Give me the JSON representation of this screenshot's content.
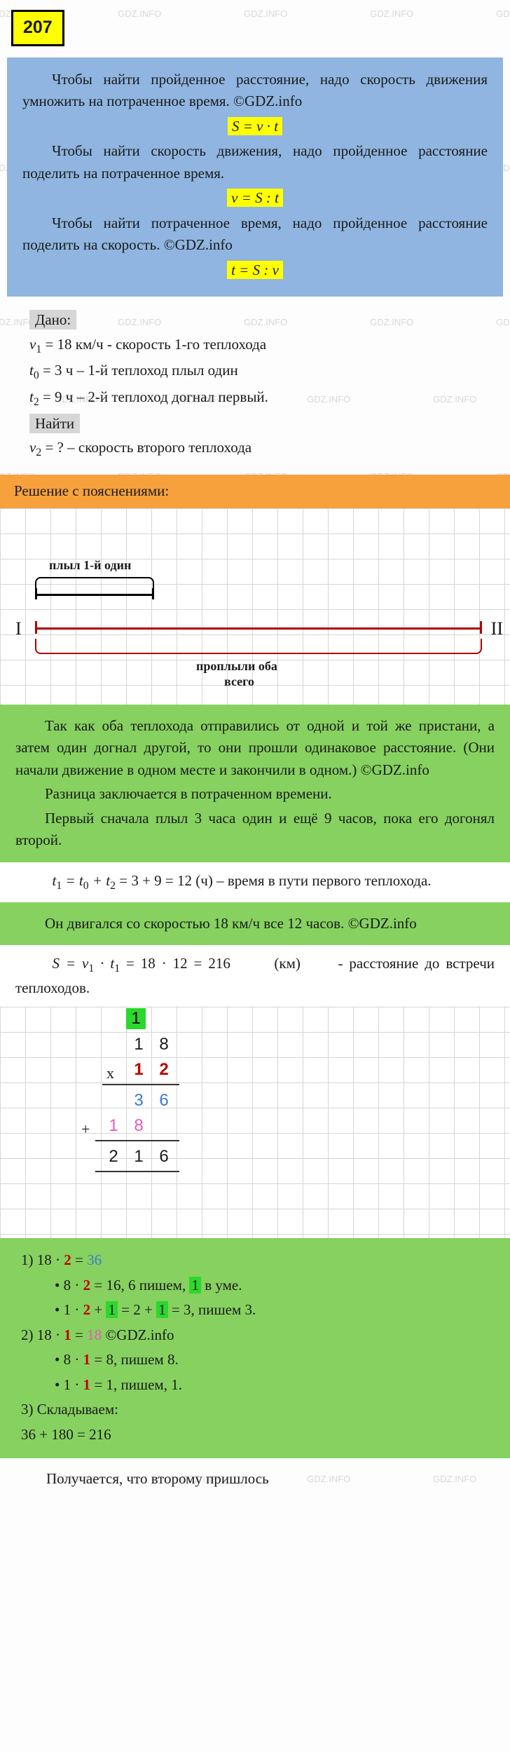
{
  "page_number": "207",
  "watermark_text": "GDZ.INFO",
  "blue_box": {
    "p1": "Чтобы найти пройденное расстояние, надо скорость движения умножить на потраченное время. ©GDZ.info",
    "f1": "S = v · t",
    "p2": "Чтобы найти скорость движения, надо пройденное расстояние поделить на потраченное время.",
    "f2": "v = S : t",
    "p3": "Чтобы найти потраченное время, надо пройденное расстояние поделить на скорость. ©GDZ.info",
    "f3": "t = S : v"
  },
  "given": {
    "label": "Дано:",
    "l1_pre": "v",
    "l1_sub": "1",
    "l1_post": " = 18 км/ч  - скорость 1-го теплохода",
    "l2_pre": "t",
    "l2_sub": "0",
    "l2_post": " = 3 ч – 1-й теплоход плыл один",
    "l3_pre": "t",
    "l3_sub": "2",
    "l3_post": " = 9 ч – 2-й теплоход догнал первый.",
    "find_label": "Найти",
    "l4_pre": "v",
    "l4_sub": "2",
    "l4_post": " = ? – скорость второго теплохода"
  },
  "orange_header": "Решение с пояснениями:",
  "diagram": {
    "label_top": "плыл 1-й один",
    "label_bottom_1": "проплыли оба",
    "label_bottom_2": "всего",
    "left": "I",
    "right": "II"
  },
  "expl1": {
    "p1": "Так как оба теплохода отправились от одной и той же пристани, а затем один догнал другой, то они прошли одинаковое расстояние. (Они начали движение в одном месте и закончили в одном.) ©GDZ.info",
    "p2": "Разница заключается в потраченном времени.",
    "p3": "Первый сначала плыл 3 часа один и ещё 9 часов, пока его догонял второй."
  },
  "step_t1": {
    "eq_pre": "t",
    "eq_s1": "1",
    "eq_mid1": " = t",
    "eq_s0": "0",
    "eq_mid2": " + t",
    "eq_s2": "2",
    "eq_post": " = 3 + 9 = 12  (ч) – время в пути первого теплохода."
  },
  "expl2": "Он двигался со скоростью 18 км/ч все 12 часов.  ©GDZ.info",
  "step_s": {
    "eq_pre": "S = v",
    "eq_s1": "1",
    "eq_mid": " · t",
    "eq_s2": "1",
    "eq_post": " = 18 · 12 = 216",
    "unit": "(км)",
    "tail": "- расстояние до встречи теплоходов."
  },
  "calc_grid": {
    "carry1": "1",
    "r1c1": "1",
    "r1c2": "8",
    "xsym": "х",
    "r2c1": "1",
    "r2c2": "2",
    "p1c1": "3",
    "p1c2": "6",
    "plussym": "+",
    "p2c0": "1",
    "p2c1": "8",
    "res0": "2",
    "res1": "1",
    "res2": "6"
  },
  "green_calc": {
    "l1_a": "1) 18 · ",
    "l1_b": "2",
    "l1_c": " = ",
    "l1_d": "36",
    "b1_a": "8 · ",
    "b1_b": "2",
    "b1_c": " = 16, 6 пишем, ",
    "b1_d": "1",
    "b1_e": " в уме.",
    "b2_a": "1 · ",
    "b2_b": "2",
    "b2_c": " + ",
    "b2_d": "1",
    "b2_e": " = 2 + ",
    "b2_f": "1",
    "b2_g": " = 3, пишем 3.",
    "l2_a": "2) 18 · ",
    "l2_b": "1",
    "l2_c": " = ",
    "l2_d": "18",
    "l2_e": "   ©GDZ.info",
    "b3_a": "8 · ",
    "b3_b": "1",
    "b3_c": " = 8, пишем 8.",
    "b4_a": "1 · ",
    "b4_b": "1",
    "b4_c": " = 1, пишем, 1.",
    "l3": "3) Складываем:",
    "l4": "36 + 180 = 216"
  },
  "footer": "Получается, что второму пришлось"
}
